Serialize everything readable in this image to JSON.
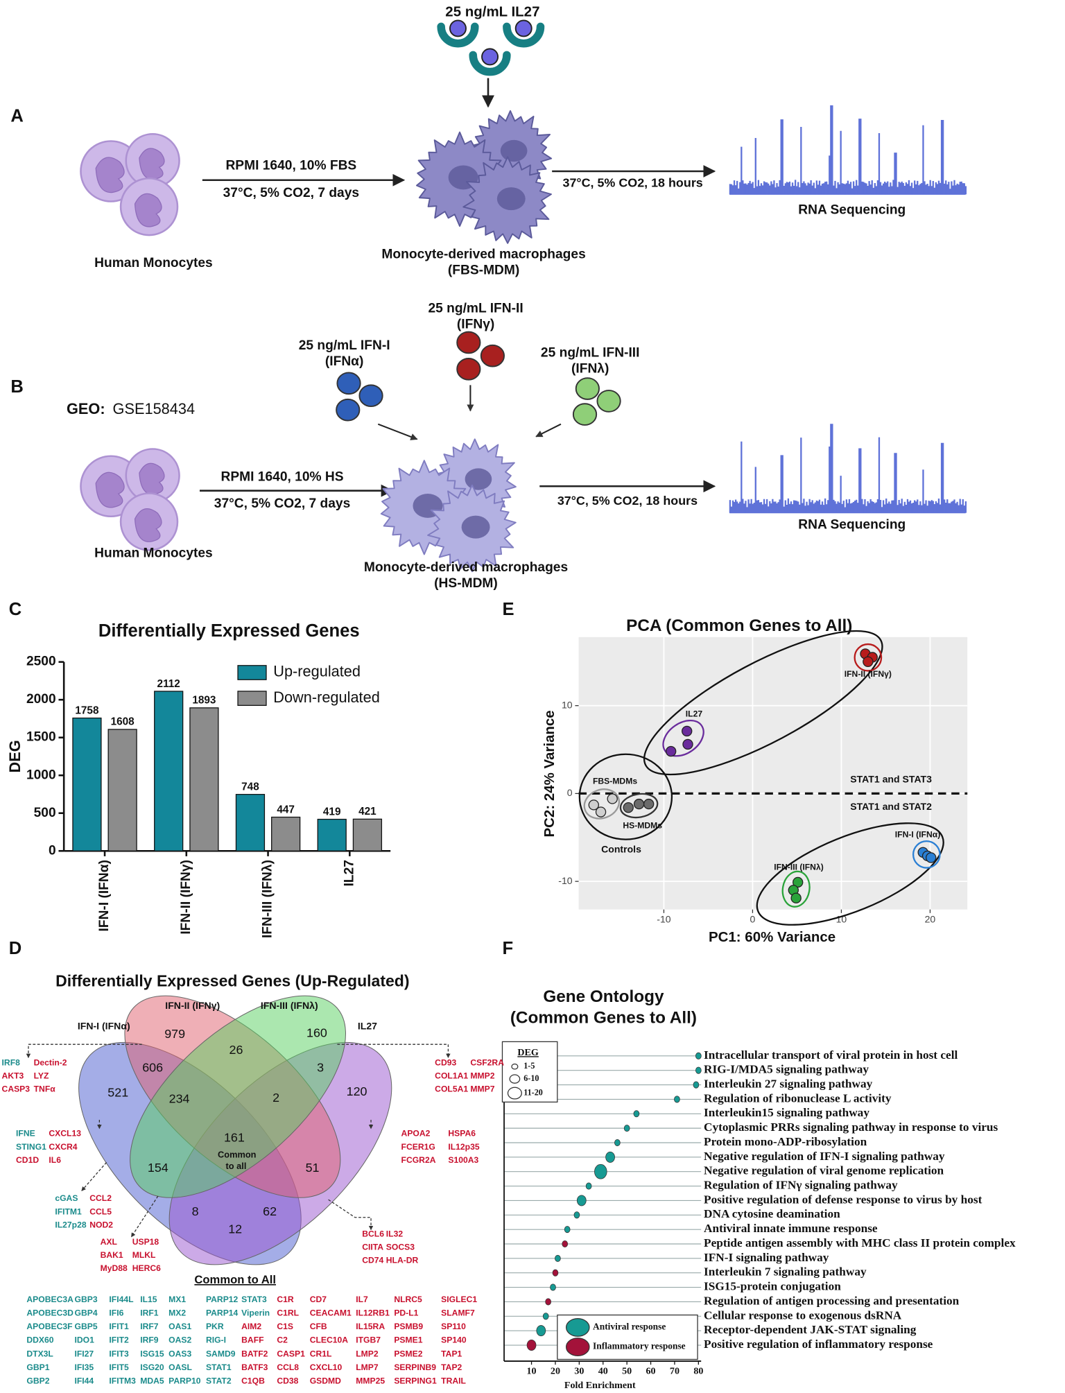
{
  "panel_a": {
    "label": "A",
    "stimulus": "25 ng/mL IL27",
    "cells": "Human Monocytes",
    "culture": [
      "RPMI 1640, 10% FBS",
      "37°C, 5% CO2, 7 days"
    ],
    "macrophages": [
      "Monocyte-derived macrophages",
      "(FBS-MDM)"
    ],
    "incubation": "37°C, 5% CO2, 18 hours",
    "readout": "RNA Sequencing"
  },
  "panel_b": {
    "label": "B",
    "geo_label": "GEO:",
    "geo_id": "GSE158434",
    "stimuli": [
      [
        "25 ng/mL IFN-I",
        "(IFNα)"
      ],
      [
        "25 ng/mL IFN-II",
        "(IFNγ)"
      ],
      [
        "25 ng/mL IFN-III",
        "(IFNλ)"
      ]
    ],
    "cells": "Human Monocytes",
    "culture": [
      "RPMI 1640, 10% HS",
      "37°C, 5% CO2, 7 days"
    ],
    "macrophages": [
      "Monocyte-derived macrophages",
      "(HS-MDM)"
    ],
    "incubation": "37°C, 5% CO2, 18 hours",
    "readout": "RNA Sequencing"
  },
  "chart_data": [
    {
      "panel_label": "C",
      "type": "bar",
      "title": "Differentially Expressed Genes",
      "y_label": "DEG",
      "categories": [
        "IFN-I (IFNα)",
        "IFN-II (IFNγ)",
        "IFN-III (IFNλ)",
        "IL27"
      ],
      "series": [
        {
          "name": "Up-regulated",
          "color": "#13879a",
          "values": [
            1758,
            2112,
            748,
            419
          ]
        },
        {
          "name": "Down-regulated",
          "color": "#8c8c8c",
          "values": [
            1608,
            1893,
            447,
            421
          ]
        }
      ],
      "ylim": [
        0,
        2500
      ],
      "yticks": [
        0,
        500,
        1000,
        1500,
        2000,
        2500
      ],
      "legend": "upper right"
    },
    {
      "panel_label": "E",
      "type": "scatter",
      "title": "PCA (Common Genes to All)",
      "x_label": "PC1: 60% Variance",
      "y_label": "PC2: 24% Variance",
      "xlim": [
        -19.6,
        24.2
      ],
      "ylim": [
        -13.2,
        17.8
      ],
      "xticks": [
        -10,
        0,
        10,
        20
      ],
      "yticks": [
        -10,
        0,
        10
      ],
      "grid": true,
      "hline": 0,
      "series": [
        {
          "name": "IFN-II (IFNγ)",
          "color": "#b81c1c",
          "x": [
            12.7,
            13.5,
            13.0
          ],
          "values": [
            15.9,
            15.5,
            15.0
          ]
        },
        {
          "name": "IL27",
          "color": "#6a2c9c",
          "x": [
            -7.4,
            -7.3,
            -9.2
          ],
          "values": [
            7.1,
            5.6,
            4.8
          ]
        },
        {
          "name": "FBS-MDMs",
          "color": "#cfcfcf",
          "x": [
            -17.9,
            -17.1,
            -15.8
          ],
          "values": [
            -1.3,
            -2.1,
            -0.6
          ]
        },
        {
          "name": "HS-MDMs",
          "color": "#6b6b6b",
          "x": [
            -14.0,
            -12.8,
            -11.7
          ],
          "values": [
            -1.6,
            -1.2,
            -1.2
          ]
        },
        {
          "name": "IFN-III (IFNλ)",
          "color": "#2aa33a",
          "x": [
            5.1,
            4.6,
            4.9
          ],
          "values": [
            -10.1,
            -11.0,
            -11.9
          ]
        },
        {
          "name": "IFN-I (IFNα)",
          "color": "#2a7fd4",
          "x": [
            19.2,
            19.7,
            20.1
          ],
          "values": [
            -6.7,
            -7.1,
            -7.3
          ]
        }
      ],
      "annotations": [
        "STAT1 and STAT3",
        "STAT1 and STAT2",
        "Controls"
      ]
    },
    {
      "panel_label": "F",
      "type": "dot",
      "title": [
        "Gene Ontology",
        "(Common Genes to All)"
      ],
      "x_label": "Fold Enrichment",
      "categories": [
        "Intracellular transport of viral protein in host cell",
        "RIG-I/MDA5 signaling pathway",
        "Interleukin 27 signaling pathway",
        "Regulation of ribonuclease L activity",
        "Interleukin15 signaling pathway",
        "Cytoplasmic PRRs signaling pathway in response to virus",
        "Protein mono-ADP-ribosylation",
        "Negative regulation of IFN-I signaling pathway",
        "Negative regulation of viral genome replication",
        "Regulation of IFNγ signaling pathway",
        "Positive regulation of defense response to virus by host",
        "DNA cytosine deamination",
        "Antiviral innate immune response",
        "Peptide antigen assembly with MHC class II protein complex",
        "IFN-I signaling pathway",
        "Interleukin 7 signaling pathway",
        "ISG15-protein conjugation",
        "Regulation of antigen processing and presentation",
        "Cellular response to exogenous dsRNA",
        "Receptor-dependent JAK-STAT signaling",
        "Positive regulation of inflammatory response"
      ],
      "series": [
        {
          "name": "Antiviral response",
          "color": "#179a93",
          "values": [
            80,
            80,
            79,
            71,
            54,
            50,
            46,
            43,
            39,
            34,
            31,
            29,
            25,
            null,
            21,
            null,
            19,
            null,
            16,
            14,
            null
          ],
          "sizes": [
            3,
            3,
            3,
            3,
            3,
            3,
            3,
            8,
            15,
            3,
            8,
            3,
            3,
            null,
            3,
            null,
            3,
            null,
            3,
            8,
            null
          ]
        },
        {
          "name": "Inflammatory response",
          "color": "#a3123a",
          "values": [
            null,
            null,
            null,
            null,
            null,
            null,
            null,
            null,
            null,
            null,
            null,
            null,
            null,
            24,
            null,
            20,
            null,
            17,
            null,
            null,
            10
          ],
          "sizes": [
            null,
            null,
            null,
            null,
            null,
            null,
            null,
            null,
            null,
            null,
            null,
            null,
            null,
            3,
            null,
            3,
            null,
            3,
            null,
            null,
            8
          ]
        }
      ],
      "xlim": [
        0,
        80
      ],
      "xticks": [
        10,
        20,
        30,
        40,
        50,
        60,
        70,
        80
      ],
      "size_legend": {
        "title": "DEG",
        "ticks": [
          {
            "value": 3,
            "label": "1-5"
          },
          {
            "value": 8,
            "label": "6-10"
          },
          {
            "value": 15,
            "label": "11-20"
          }
        ]
      }
    }
  ],
  "panel_d": {
    "label": "D",
    "title": "Differentially Expressed Genes (Up-Regulated)",
    "sets": [
      "IFN-I (IFNα)",
      "IFN-II (IFNγ)",
      "IFN-III (IFNλ)",
      "IL27"
    ],
    "regions": [
      979,
      160,
      606,
      26,
      3,
      521,
      234,
      2,
      120,
      161,
      154,
      51,
      8,
      62,
      12
    ],
    "center_label": [
      "Common",
      "to all"
    ],
    "gene_colors": {
      "antiviral": "#1b8b8b",
      "inflammatory": "#c8102e"
    },
    "callouts": [
      {
        "antiviral": [
          "IRF8"
        ],
        "inflammatory": [
          "AKT3",
          "CASP3",
          "Dectin-2",
          "LYZ",
          "TNFα"
        ]
      },
      {
        "inflammatory": [
          "CD93",
          "COL1A1",
          "COL5A1",
          "CSF2RA",
          "MMP2",
          "MMP7"
        ]
      },
      {
        "antiviral": [
          "IFNE",
          "STING1"
        ],
        "inflammatory": [
          "CD1D",
          "CXCL13",
          "CXCR4",
          "IL6"
        ]
      },
      {
        "inflammatory": [
          "APOA2",
          "FCER1G",
          "FCGR2A",
          "HSPA6",
          "IL12p35",
          "S100A3"
        ]
      },
      {
        "antiviral": [
          "cGAS",
          "IFITM1",
          "IL27p28"
        ],
        "inflammatory": [
          "CCL2",
          "CCL5",
          "NOD2"
        ]
      },
      {
        "inflammatory": [
          "AXL",
          "BAK1",
          "MyD88",
          "USP18",
          "MLKL",
          "HERC6"
        ]
      },
      {
        "inflammatory": [
          "BCL6",
          "CIITA",
          "CD74",
          "IL32",
          "SOCS3",
          "HLA-DR"
        ]
      }
    ],
    "common_title": "Common to All",
    "common_genes": {
      "antiviral": [
        "APOBEC3A",
        "APOBEC3D",
        "APOBEC3F",
        "DDX60",
        "DTX3L",
        "GBP1",
        "GBP2",
        "GBP3",
        "GBP4",
        "GBP5",
        "IDO1",
        "IFI27",
        "IFI35",
        "IFI44",
        "IFI44L",
        "IFI6",
        "IFIT1",
        "IFIT2",
        "IFIT3",
        "IFIT5",
        "IFITM3",
        "IL15",
        "IRF1",
        "IRF7",
        "IRF9",
        "ISG15",
        "ISG20",
        "MDA5",
        "MX1",
        "MX2",
        "OAS1",
        "OAS2",
        "OAS3",
        "OASL",
        "PARP10",
        "PARP12",
        "PARP14",
        "PKR",
        "RIG-I",
        "SAMD9",
        "STAT1",
        "STAT2",
        "STAT3",
        "Viperin"
      ],
      "inflammatory": [
        "AIM2",
        "BAFF",
        "BATF2",
        "BATF3",
        "C1QB",
        "C1R",
        "C1RL",
        "C1S",
        "C2",
        "CASP1",
        "CCL8",
        "CD38",
        "CD7",
        "CEACAM1",
        "CFB",
        "CLEC10A",
        "CR1L",
        "CXCL10",
        "GSDMD",
        "IL7",
        "IL12RB1",
        "IL15RA",
        "ITGB7",
        "LMP2",
        "LMP7",
        "MMP25",
        "NLRC5",
        "PD-L1",
        "PSMB9",
        "PSME1",
        "PSME2",
        "SERPINB9",
        "SERPING1",
        "SIGLEC1",
        "SLAMF7",
        "SP110",
        "SP140",
        "TAP1",
        "TAP2",
        "TRAIL"
      ]
    }
  }
}
